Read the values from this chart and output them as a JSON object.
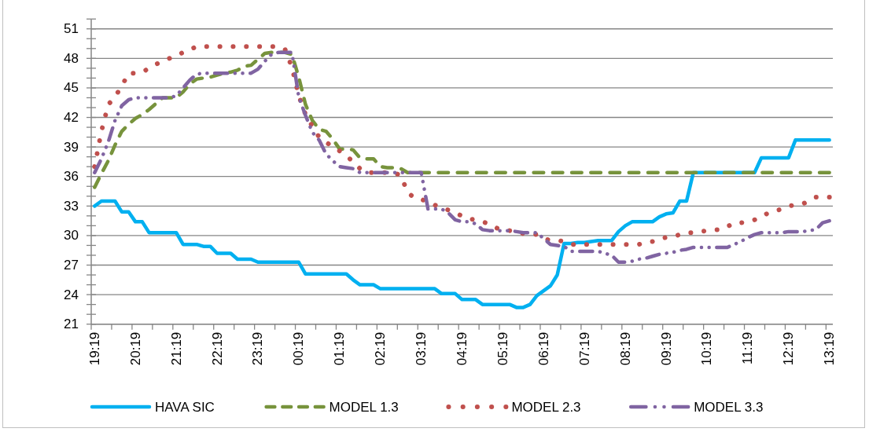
{
  "chart_data": {
    "type": "line",
    "ylim": [
      21,
      52
    ],
    "grid": "y",
    "legend": "bottom",
    "categories": [
      "19:19",
      null,
      null,
      null,
      null,
      null,
      "20:19",
      null,
      null,
      null,
      null,
      null,
      "21:19",
      null,
      null,
      null,
      null,
      null,
      "22:19",
      null,
      null,
      null,
      null,
      null,
      "23:19",
      null,
      null,
      null,
      null,
      null,
      "00:19",
      null,
      null,
      null,
      null,
      null,
      "01:19",
      null,
      null,
      null,
      null,
      null,
      "02:19",
      null,
      null,
      null,
      null,
      null,
      "03:19",
      null,
      null,
      null,
      null,
      null,
      "04:19",
      null,
      null,
      null,
      null,
      null,
      "05:19",
      null,
      null,
      null,
      null,
      null,
      "06:19",
      null,
      null,
      null,
      null,
      null,
      "07:19",
      null,
      null,
      null,
      null,
      null,
      "08:19",
      null,
      null,
      null,
      null,
      null,
      "09:19",
      null,
      null,
      null,
      null,
      null,
      "10:19",
      null,
      null,
      null,
      null,
      null,
      "11:19",
      null,
      null,
      null,
      null,
      null,
      "12:19",
      null,
      null,
      null,
      null,
      null,
      "13:19"
    ],
    "yticks": [
      21,
      {
        "value": 22,
        "label": null
      },
      {
        "value": 23,
        "label": null
      },
      24,
      {
        "value": 25,
        "label": null
      },
      {
        "value": 26,
        "label": null
      },
      27,
      {
        "value": 28,
        "label": null
      },
      {
        "value": 29,
        "label": null
      },
      30,
      {
        "value": 31,
        "label": null
      },
      {
        "value": 32,
        "label": null
      },
      33,
      {
        "value": 34,
        "label": null
      },
      {
        "value": 35,
        "label": null
      },
      36,
      {
        "value": 37,
        "label": null
      },
      {
        "value": 38,
        "label": null
      },
      39,
      {
        "value": 40,
        "label": null
      },
      {
        "value": 41,
        "label": null
      },
      42,
      {
        "value": 43,
        "label": null
      },
      {
        "value": 44,
        "label": null
      },
      45,
      {
        "value": 46,
        "label": null
      },
      {
        "value": 47,
        "label": null
      },
      48,
      {
        "value": 49,
        "label": null
      },
      {
        "value": 50,
        "label": null
      },
      51,
      {
        "value": 52,
        "label": null
      }
    ],
    "series": [
      {
        "name": "HAVA SIC",
        "color": "#00b0f0",
        "line_style": "solid",
        "values": [
          33.0,
          33.5,
          33.5,
          33.5,
          32.4,
          32.4,
          31.4,
          31.4,
          30.3,
          30.3,
          30.3,
          30.3,
          30.3,
          29.1,
          29.1,
          29.1,
          28.9,
          28.9,
          28.2,
          28.2,
          28.2,
          27.6,
          27.6,
          27.6,
          27.3,
          27.3,
          27.3,
          27.3,
          27.3,
          27.3,
          27.3,
          26.1,
          26.1,
          26.1,
          26.1,
          26.1,
          26.1,
          26.1,
          25.5,
          25.0,
          25.0,
          25.0,
          24.6,
          24.6,
          24.6,
          24.6,
          24.6,
          24.6,
          24.6,
          24.6,
          24.6,
          24.1,
          24.1,
          24.1,
          23.5,
          23.5,
          23.5,
          23.0,
          23.0,
          23.0,
          23.0,
          23.0,
          22.7,
          22.7,
          23.0,
          23.9,
          24.4,
          24.9,
          26.0,
          29.2,
          29.2,
          29.3,
          29.3,
          29.4,
          29.5,
          29.5,
          29.5,
          30.4,
          31.0,
          31.4,
          31.4,
          31.4,
          31.4,
          31.9,
          32.2,
          32.3,
          33.5,
          33.5,
          36.4,
          36.4,
          36.4,
          36.4,
          36.4,
          36.4,
          36.4,
          36.4,
          36.4,
          36.4,
          37.9,
          37.9,
          37.9,
          37.9,
          37.9,
          39.7,
          39.7,
          39.7,
          39.7,
          39.7,
          39.7
        ]
      },
      {
        "name": "MODEL 1.3",
        "color": "#77933c",
        "line_style": "dashed",
        "values": [
          34.9,
          36.3,
          37.6,
          39.2,
          40.6,
          41.3,
          41.9,
          42.3,
          42.8,
          43.4,
          44.0,
          44.0,
          44.0,
          44.6,
          45.4,
          45.9,
          46.0,
          46.1,
          46.3,
          46.5,
          46.6,
          46.8,
          47.2,
          47.3,
          47.9,
          48.5,
          48.6,
          48.6,
          48.6,
          48.4,
          46.1,
          43.3,
          41.7,
          40.8,
          40.6,
          39.8,
          38.8,
          38.8,
          38.7,
          37.9,
          37.8,
          37.8,
          37.0,
          36.9,
          36.9,
          36.8,
          36.4,
          36.4,
          36.4,
          36.4,
          36.4,
          36.4,
          36.4,
          36.4,
          36.4,
          36.4,
          36.4,
          36.4,
          36.4,
          36.4,
          36.4,
          36.4,
          36.4,
          36.4,
          36.4,
          36.4,
          36.4,
          36.4,
          36.4,
          36.4,
          36.4,
          36.4,
          36.4,
          36.4,
          36.4,
          36.4,
          36.4,
          36.4,
          36.4,
          36.4,
          36.4,
          36.4,
          36.4,
          36.4,
          36.4,
          36.4,
          36.4,
          36.4,
          36.4,
          36.4,
          36.4,
          36.4,
          36.4,
          36.4,
          36.4,
          36.4,
          36.4,
          36.4,
          36.4,
          36.4,
          36.4,
          36.4,
          36.4,
          36.4,
          36.4,
          36.4,
          36.4,
          36.4,
          36.4
        ]
      },
      {
        "name": "MODEL 2.3",
        "color": "#c0504d",
        "line_style": "dotted",
        "values": [
          37.0,
          40.6,
          43.3,
          44.1,
          45.2,
          46.5,
          46.5,
          46.6,
          47.0,
          47.4,
          47.7,
          48.0,
          48.3,
          48.6,
          48.9,
          49.2,
          49.2,
          49.2,
          49.2,
          49.2,
          49.2,
          49.2,
          49.2,
          49.2,
          49.2,
          49.2,
          49.2,
          49.2,
          48.9,
          47.1,
          44.2,
          42.3,
          41.1,
          40.0,
          39.5,
          39.0,
          38.6,
          38.1,
          37.5,
          36.8,
          36.4,
          36.4,
          36.4,
          36.4,
          36.4,
          36.1,
          34.4,
          33.8,
          33.7,
          33.4,
          33.1,
          32.8,
          32.6,
          32.3,
          32.0,
          31.7,
          31.6,
          31.4,
          31.2,
          30.8,
          30.5,
          30.5,
          30.4,
          30.2,
          30.2,
          30.1,
          29.7,
          29.5,
          29.5,
          29.4,
          29.1,
          29.1,
          29.1,
          29.1,
          29.1,
          29.1,
          29.1,
          29.1,
          29.1,
          29.1,
          29.1,
          29.3,
          29.4,
          29.7,
          29.8,
          29.9,
          30.1,
          30.3,
          30.3,
          30.4,
          30.5,
          30.6,
          30.6,
          30.9,
          31.3,
          31.3,
          31.4,
          31.6,
          31.9,
          32.3,
          32.5,
          32.7,
          33.0,
          33.1,
          33.2,
          33.5,
          33.9,
          33.9,
          33.9
        ]
      },
      {
        "name": "MODEL 3.3",
        "color": "#8064a2",
        "line_style": "dashdotdot",
        "values": [
          36.4,
          37.8,
          39.5,
          41.7,
          43.2,
          43.8,
          44.0,
          44.0,
          44.0,
          44.0,
          44.0,
          44.0,
          44.2,
          45.0,
          45.8,
          46.4,
          46.5,
          46.5,
          46.5,
          46.5,
          46.5,
          46.5,
          46.5,
          46.5,
          46.9,
          47.7,
          48.4,
          48.6,
          48.6,
          48.6,
          44.1,
          42.2,
          40.5,
          39.7,
          38.3,
          37.6,
          37.0,
          36.9,
          36.8,
          36.4,
          36.4,
          36.4,
          36.4,
          36.4,
          36.4,
          36.4,
          36.4,
          36.4,
          36.4,
          32.7,
          32.7,
          32.7,
          32.3,
          31.6,
          31.4,
          31.4,
          31.2,
          30.6,
          30.5,
          30.5,
          30.5,
          30.5,
          30.4,
          30.3,
          30.3,
          30.3,
          29.7,
          29.1,
          29.0,
          28.9,
          28.4,
          28.4,
          28.4,
          28.4,
          28.4,
          28.2,
          28.0,
          27.3,
          27.3,
          27.4,
          27.6,
          27.7,
          27.9,
          28.1,
          28.2,
          28.3,
          28.5,
          28.6,
          28.8,
          28.8,
          28.8,
          28.8,
          28.8,
          28.8,
          29.1,
          29.4,
          29.8,
          30.1,
          30.3,
          30.3,
          30.3,
          30.3,
          30.4,
          30.4,
          30.4,
          30.5,
          30.6,
          31.3,
          31.5
        ]
      }
    ]
  }
}
